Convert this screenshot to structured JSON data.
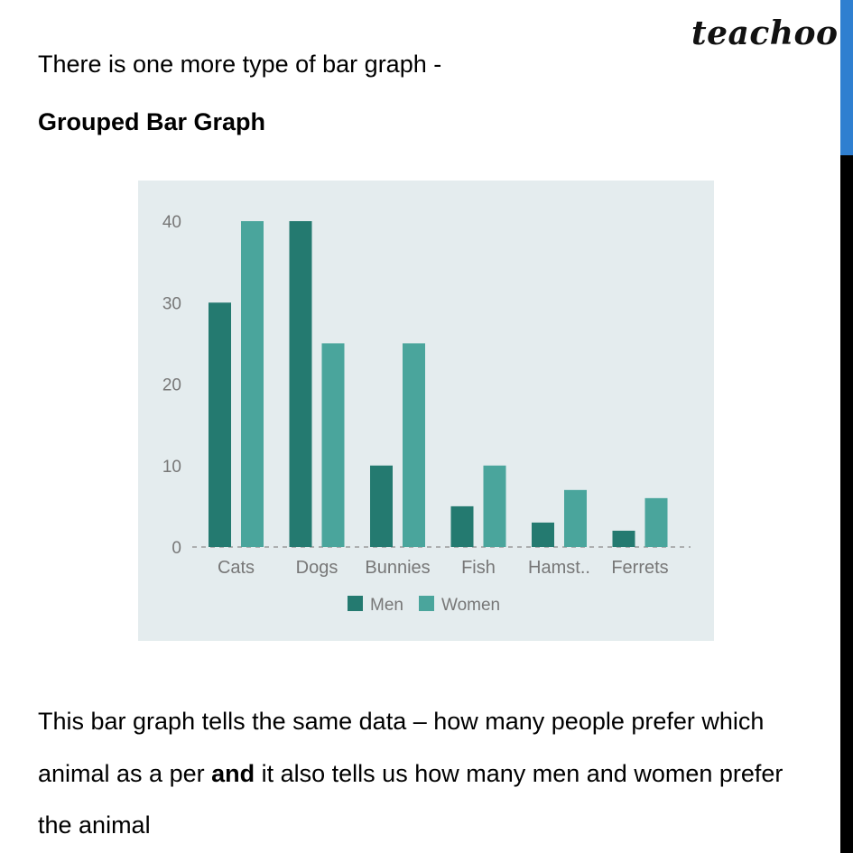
{
  "brand": {
    "name": "teachoo"
  },
  "intro": "There is one more type of bar graph -",
  "heading": "Grouped Bar Graph",
  "paragraph": {
    "part1": "This bar graph tells the same data – how many people prefer which animal as a per ",
    "bold": "and",
    "part2": " it also tells us how many men and women prefer the animal"
  },
  "colors": {
    "men": "#247a70",
    "women": "#4aa59c",
    "chart_bg": "#e4ecee",
    "scroll_thumb": "#2f7fd0"
  },
  "chart_data": {
    "type": "bar",
    "categories": [
      "Cats",
      "Dogs",
      "Bunnies",
      "Fish",
      "Hamst..",
      "Ferrets"
    ],
    "series": [
      {
        "name": "Men",
        "values": [
          30,
          40,
          10,
          5,
          3,
          2
        ]
      },
      {
        "name": "Women",
        "values": [
          40,
          25,
          25,
          10,
          7,
          6
        ]
      }
    ],
    "yticks": [
      0,
      10,
      20,
      30,
      40
    ],
    "ylim": [
      0,
      40
    ],
    "grid": false,
    "legend": "bottom",
    "title": "",
    "xlabel": "",
    "ylabel": ""
  }
}
